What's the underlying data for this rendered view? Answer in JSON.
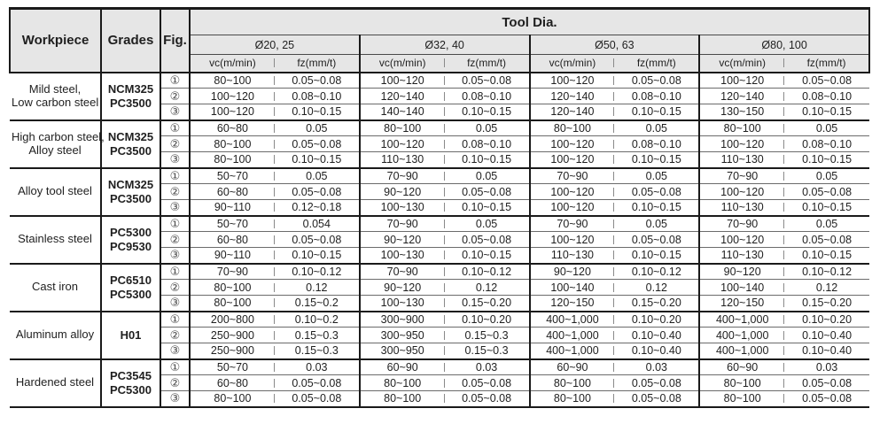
{
  "header": {
    "workpiece": "Workpiece",
    "grades": "Grades",
    "fig": "Fig.",
    "tool_dia": "Tool Dia.",
    "diameters": [
      "Ø20, 25",
      "Ø32, 40",
      "Ø50, 63",
      "Ø80, 100"
    ],
    "vc_label": "vc(m/min)",
    "fz_label": "fz(mm/t)"
  },
  "colors": {
    "header_bg": "#e6e6e6",
    "border_dark": "#1a1a1a",
    "sub_row_line": "#6b6b6b",
    "tick": "#8a8a8a"
  },
  "blocks": [
    {
      "workpiece_lines": [
        "Mild steel,",
        "Low carbon steel"
      ],
      "grades": [
        "NCM325",
        "PC3500"
      ],
      "rows": [
        {
          "fig": "①",
          "values": [
            "80~100",
            "0.05~0.08",
            "100~120",
            "0.05~0.08",
            "100~120",
            "0.05~0.08",
            "100~120",
            "0.05~0.08"
          ]
        },
        {
          "fig": "②",
          "values": [
            "100~120",
            "0.08~0.10",
            "120~140",
            "0.08~0.10",
            "120~140",
            "0.08~0.10",
            "120~140",
            "0.08~0.10"
          ]
        },
        {
          "fig": "③",
          "values": [
            "100~120",
            "0.10~0.15",
            "140~140",
            "0.10~0.15",
            "120~140",
            "0.10~0.15",
            "130~150",
            "0.10~0.15"
          ]
        }
      ]
    },
    {
      "workpiece_lines": [
        "High carbon steel,",
        "Alloy steel"
      ],
      "grades": [
        "NCM325",
        "PC3500"
      ],
      "rows": [
        {
          "fig": "①",
          "values": [
            "60~80",
            "0.05",
            "80~100",
            "0.05",
            "80~100",
            "0.05",
            "80~100",
            "0.05"
          ]
        },
        {
          "fig": "②",
          "values": [
            "80~100",
            "0.05~0.08",
            "100~120",
            "0.08~0.10",
            "100~120",
            "0.08~0.10",
            "100~120",
            "0.08~0.10"
          ]
        },
        {
          "fig": "③",
          "values": [
            "80~100",
            "0.10~0.15",
            "110~130",
            "0.10~0.15",
            "100~120",
            "0.10~0.15",
            "110~130",
            "0.10~0.15"
          ]
        }
      ]
    },
    {
      "workpiece_lines": [
        "Alloy tool steel"
      ],
      "grades": [
        "NCM325",
        "PC3500"
      ],
      "rows": [
        {
          "fig": "①",
          "values": [
            "50~70",
            "0.05",
            "70~90",
            "0.05",
            "70~90",
            "0.05",
            "70~90",
            "0.05"
          ]
        },
        {
          "fig": "②",
          "values": [
            "60~80",
            "0.05~0.08",
            "90~120",
            "0.05~0.08",
            "100~120",
            "0.05~0.08",
            "100~120",
            "0.05~0.08"
          ]
        },
        {
          "fig": "③",
          "values": [
            "90~110",
            "0.12~0.18",
            "100~130",
            "0.10~0.15",
            "100~120",
            "0.10~0.15",
            "110~130",
            "0.10~0.15"
          ]
        }
      ]
    },
    {
      "workpiece_lines": [
        "Stainless steel"
      ],
      "grades": [
        "PC5300",
        "PC9530"
      ],
      "rows": [
        {
          "fig": "①",
          "values": [
            "50~70",
            "0.054",
            "70~90",
            "0.05",
            "70~90",
            "0.05",
            "70~90",
            "0.05"
          ]
        },
        {
          "fig": "②",
          "values": [
            "60~80",
            "0.05~0.08",
            "90~120",
            "0.05~0.08",
            "100~120",
            "0.05~0.08",
            "100~120",
            "0.05~0.08"
          ]
        },
        {
          "fig": "③",
          "values": [
            "90~110",
            "0.10~0.15",
            "100~130",
            "0.10~0.15",
            "110~130",
            "0.10~0.15",
            "110~130",
            "0.10~0.15"
          ]
        }
      ]
    },
    {
      "workpiece_lines": [
        "Cast iron"
      ],
      "grades": [
        "PC6510",
        "PC5300"
      ],
      "rows": [
        {
          "fig": "①",
          "values": [
            "70~90",
            "0.10~0.12",
            "70~90",
            "0.10~0.12",
            "90~120",
            "0.10~0.12",
            "90~120",
            "0.10~0.12"
          ]
        },
        {
          "fig": "②",
          "values": [
            "80~100",
            "0.12",
            "90~120",
            "0.12",
            "100~140",
            "0.12",
            "100~140",
            "0.12"
          ]
        },
        {
          "fig": "③",
          "values": [
            "80~100",
            "0.15~0.2",
            "100~130",
            "0.15~0.20",
            "120~150",
            "0.15~0.20",
            "120~150",
            "0.15~0.20"
          ]
        }
      ]
    },
    {
      "workpiece_lines": [
        "Aluminum alloy"
      ],
      "grades": [
        "H01"
      ],
      "rows": [
        {
          "fig": "①",
          "values": [
            "200~800",
            "0.10~0.2",
            "300~900",
            "0.10~0.20",
            "400~1,000",
            "0.10~0.20",
            "400~1,000",
            "0.10~0.20"
          ]
        },
        {
          "fig": "②",
          "values": [
            "250~900",
            "0.15~0.3",
            "300~950",
            "0.15~0.3",
            "400~1,000",
            "0.10~0.40",
            "400~1,000",
            "0.10~0.40"
          ]
        },
        {
          "fig": "③",
          "values": [
            "250~900",
            "0.15~0.3",
            "300~950",
            "0.15~0.3",
            "400~1,000",
            "0.10~0.40",
            "400~1,000",
            "0.10~0.40"
          ]
        }
      ]
    },
    {
      "workpiece_lines": [
        "Hardened steel"
      ],
      "grades": [
        "PC3545",
        "PC5300"
      ],
      "rows": [
        {
          "fig": "①",
          "values": [
            "50~70",
            "0.03",
            "60~90",
            "0.03",
            "60~90",
            "0.03",
            "60~90",
            "0.03"
          ]
        },
        {
          "fig": "②",
          "values": [
            "60~80",
            "0.05~0.08",
            "80~100",
            "0.05~0.08",
            "80~100",
            "0.05~0.08",
            "80~100",
            "0.05~0.08"
          ]
        },
        {
          "fig": "③",
          "values": [
            "80~100",
            "0.05~0.08",
            "80~100",
            "0.05~0.08",
            "80~100",
            "0.05~0.08",
            "80~100",
            "0.05~0.08"
          ]
        }
      ]
    }
  ]
}
